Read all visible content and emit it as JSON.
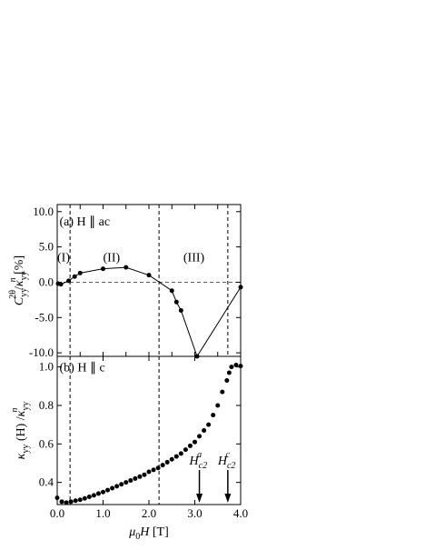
{
  "chart_data": [
    {
      "type": "line",
      "xlim": [
        0,
        4
      ],
      "ylim": [
        -10.5,
        11
      ],
      "xticks": [
        0,
        0.5,
        1,
        1.5,
        2,
        2.5,
        3,
        3.5,
        4
      ],
      "yticks": [
        {
          "value": 10,
          "label": "10.0"
        },
        {
          "value": 5,
          "label": "5.0"
        },
        {
          "value": 0,
          "label": "0.0"
        },
        {
          "value": -5,
          "label": "-5.0"
        },
        {
          "value": -10,
          "label": "-10.0"
        }
      ],
      "x": [
        0.02,
        0.08,
        0.25,
        0.38,
        0.5,
        1.0,
        1.5,
        2.0,
        2.5,
        2.6,
        2.7,
        3.05,
        4.0
      ],
      "values": [
        -0.2,
        -0.3,
        0.2,
        0.8,
        1.3,
        1.9,
        2.1,
        1.0,
        -1.2,
        -2.8,
        -4.0,
        -10.5,
        -0.7
      ],
      "color": "#000000",
      "vlines": [
        0.28,
        2.22,
        3.72
      ],
      "hlines": [
        0
      ],
      "ylabel": [
        {
          "t": "C",
          "i": true
        },
        {
          "t": "yy",
          "pos": "sub"
        },
        {
          "t": "2θ",
          "pos": "sup"
        },
        {
          "t": "/"
        },
        {
          "t": "κ",
          "i": true
        },
        {
          "t": "yy",
          "pos": "sub"
        },
        {
          "t": "n",
          "pos": "sup",
          "i": true
        },
        {
          "t": " [%]"
        }
      ],
      "annotations": [
        {
          "text": "(a) H ∥ ac",
          "x": 0.05,
          "y": 8.7
        },
        {
          "text": "(I)",
          "x": 0.0,
          "y": 3.6
        },
        {
          "text": "(II)",
          "x": 1.0,
          "y": 3.6
        },
        {
          "text": "(III)",
          "x": 2.75,
          "y": 3.6
        }
      ]
    },
    {
      "type": "scatter",
      "xlim": [
        0,
        4
      ],
      "ylim": [
        0.285,
        1.055
      ],
      "xticks": [
        {
          "value": 0,
          "label": "0.0"
        },
        {
          "value": 1,
          "label": "1.0"
        },
        {
          "value": 2,
          "label": "2.0"
        },
        {
          "value": 3,
          "label": "3.0"
        },
        {
          "value": 4,
          "label": "4.0"
        }
      ],
      "yticks": [
        {
          "value": 1,
          "label": "1.0"
        },
        {
          "value": 0.8,
          "label": "0.8"
        },
        {
          "value": 0.6,
          "label": "0.6"
        },
        {
          "value": 0.4,
          "label": "0.4"
        }
      ],
      "x": [
        0,
        0.1,
        0.2,
        0.3,
        0.4,
        0.5,
        0.6,
        0.7,
        0.8,
        0.9,
        1.0,
        1.1,
        1.2,
        1.3,
        1.4,
        1.5,
        1.6,
        1.7,
        1.8,
        1.9,
        2.0,
        2.1,
        2.2,
        2.3,
        2.4,
        2.5,
        2.6,
        2.7,
        2.8,
        2.9,
        3.0,
        3.1,
        3.2,
        3.3,
        3.4,
        3.5,
        3.6,
        3.7,
        3.75,
        3.8,
        3.9,
        4.0
      ],
      "values": [
        0.32,
        0.3,
        0.295,
        0.3,
        0.305,
        0.31,
        0.317,
        0.325,
        0.333,
        0.342,
        0.35,
        0.36,
        0.37,
        0.38,
        0.39,
        0.4,
        0.41,
        0.42,
        0.43,
        0.44,
        0.455,
        0.465,
        0.475,
        0.49,
        0.505,
        0.52,
        0.535,
        0.55,
        0.57,
        0.59,
        0.61,
        0.64,
        0.67,
        0.7,
        0.75,
        0.8,
        0.87,
        0.93,
        0.97,
        1.0,
        1.01,
        1.005
      ],
      "color": "#000000",
      "vlines": [
        0.28,
        2.22
      ],
      "ylabel": [
        {
          "t": "κ",
          "i": true
        },
        {
          "t": "yy",
          "pos": "sub"
        },
        {
          "t": " (H) /"
        },
        {
          "t": "κ",
          "i": true
        },
        {
          "t": "yy",
          "pos": "sub"
        },
        {
          "t": "n",
          "pos": "sup",
          "i": true
        }
      ],
      "xlabel": [
        {
          "t": "μ",
          "i": true
        },
        {
          "t": "0",
          "pos": "sub"
        },
        {
          "t": "H",
          "i": true
        },
        {
          "t": " [T]"
        }
      ],
      "annotations": [
        {
          "text": "(b) H ∥ c",
          "x": 0.05,
          "y": 1.0
        }
      ],
      "arrows": [
        {
          "x": 3.1,
          "base": "H",
          "sub": "c2",
          "sup": "a"
        },
        {
          "x": 3.72,
          "base": "H",
          "sub": "c2",
          "sup": "c"
        }
      ]
    }
  ]
}
